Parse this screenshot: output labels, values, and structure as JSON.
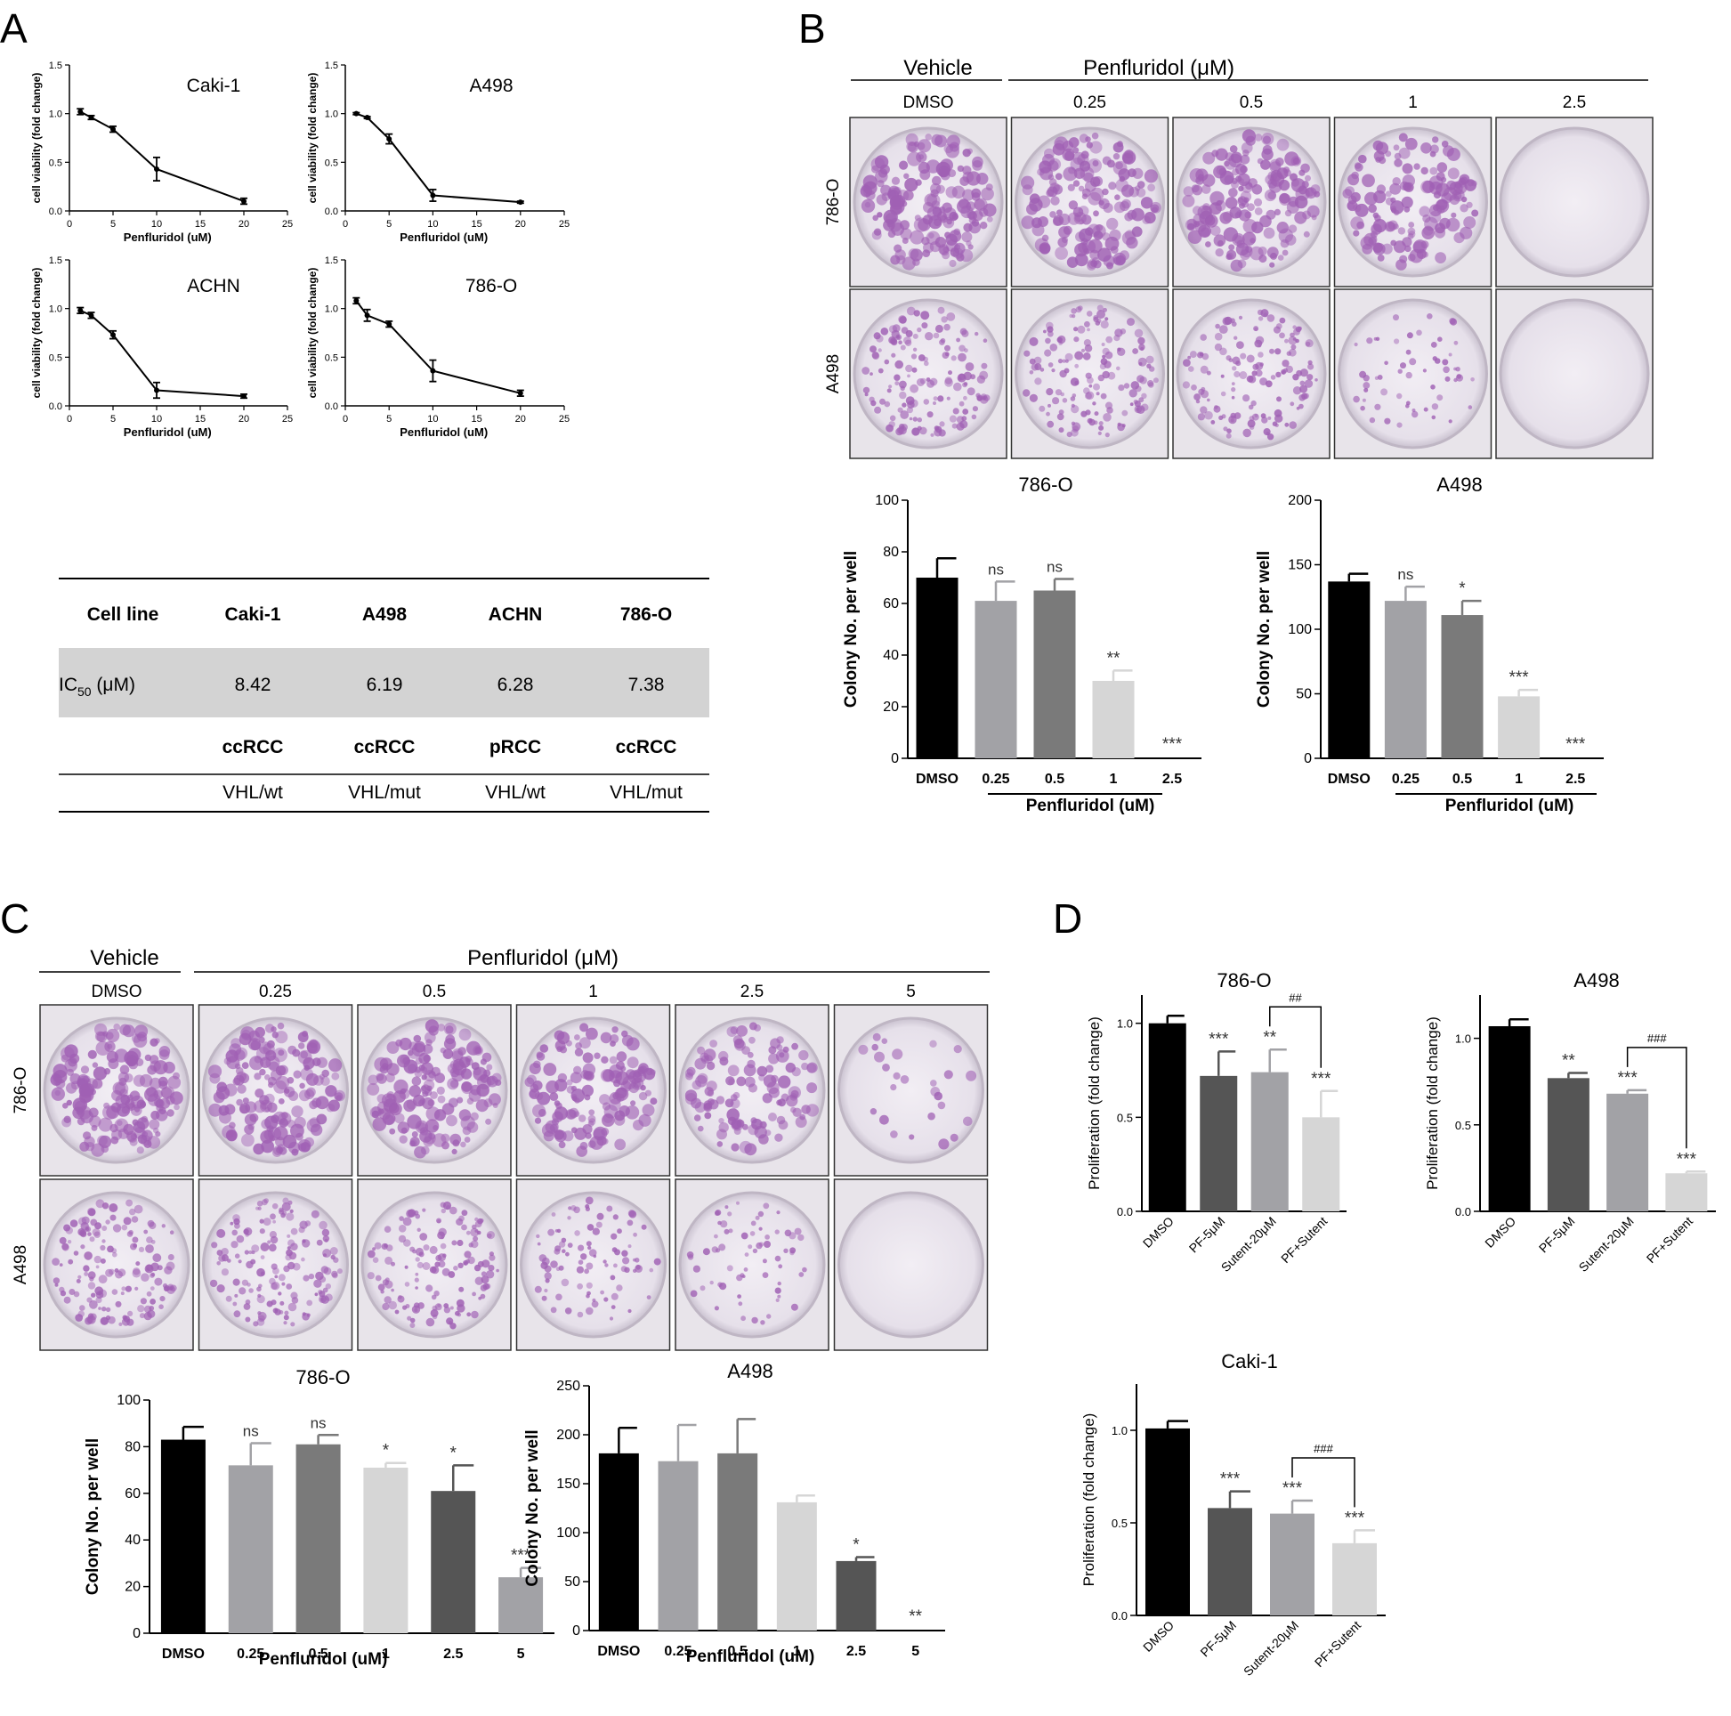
{
  "panel_labels": [
    "A",
    "B",
    "C",
    "D"
  ],
  "colors": {
    "black": "#000000",
    "dmso_bar": "#000000",
    "gray_dark": "#555555",
    "gray_mid": "#7a7a7a",
    "gray_light": "#a2a2a6",
    "gray_lightest": "#d6d6d6",
    "table_shade": "#d3d3d3",
    "well_bg": "#eeeaf0",
    "colony": "#a060b4"
  },
  "panel_a": {
    "ylabel": "cell viability (fold change)",
    "xlabel": "Penfluridol (uM)",
    "table": {
      "header": [
        "Cell line",
        "Caki-1",
        "A498",
        "ACHN",
        "786-O"
      ],
      "ic50_label": "IC",
      "ic50_sub": "50",
      "ic50_unit": " (μM)",
      "ic50_values": [
        "8.42",
        "6.19",
        "6.28",
        "7.38"
      ],
      "types": [
        "ccRCC",
        "ccRCC",
        "pRCC",
        "ccRCC"
      ],
      "vhl": [
        "VHL/wt",
        "VHL/mut",
        "VHL/wt",
        "VHL/mut"
      ]
    }
  },
  "panel_b": {
    "vehicle": "Vehicle",
    "treatment": "Penfluridol (μM)",
    "doses": [
      "DMSO",
      "0.25",
      "0.5",
      "1",
      "2.5"
    ],
    "rows": [
      "786-O",
      "A498"
    ],
    "density": [
      [
        1.0,
        0.95,
        1.0,
        0.85,
        0.0
      ],
      [
        0.9,
        0.9,
        0.85,
        0.35,
        0.0
      ]
    ]
  },
  "panel_c": {
    "vehicle": "Vehicle",
    "treatment": "Penfluridol (μM)",
    "doses": [
      "DMSO",
      "0.25",
      "0.5",
      "1",
      "2.5",
      "5"
    ],
    "rows": [
      "786-O",
      "A498"
    ],
    "density": [
      [
        1.0,
        0.95,
        1.0,
        0.85,
        0.7,
        0.15
      ],
      [
        0.9,
        0.9,
        0.85,
        0.55,
        0.4,
        0.0
      ]
    ]
  },
  "chart_data": [
    {
      "id": "A-Caki-1",
      "type": "line",
      "title": "Caki-1",
      "xlabel": "Penfluridol (uM)",
      "ylabel": "cell viability (fold change)",
      "xlim": [
        0,
        25
      ],
      "ylim": [
        0,
        1.5
      ],
      "xticks": [
        0,
        5,
        10,
        15,
        20,
        25
      ],
      "yticks": [
        0.0,
        0.5,
        1.0,
        1.5
      ],
      "x": [
        1.25,
        2.5,
        5,
        10,
        20
      ],
      "y": [
        1.02,
        0.96,
        0.84,
        0.43,
        0.1
      ],
      "err": [
        0.03,
        0.02,
        0.03,
        0.12,
        0.03
      ]
    },
    {
      "id": "A-A498",
      "type": "line",
      "title": "A498",
      "xlabel": "Penfluridol (uM)",
      "ylabel": "cell viability (fold change)",
      "xlim": [
        0,
        25
      ],
      "ylim": [
        0,
        1.5
      ],
      "xticks": [
        0,
        5,
        10,
        15,
        20,
        25
      ],
      "yticks": [
        0.0,
        0.5,
        1.0,
        1.5
      ],
      "x": [
        1.25,
        2.5,
        5,
        10,
        20
      ],
      "y": [
        1.0,
        0.96,
        0.74,
        0.16,
        0.09
      ],
      "err": [
        0.01,
        0.01,
        0.05,
        0.06,
        0.01
      ]
    },
    {
      "id": "A-ACHN",
      "type": "line",
      "title": "ACHN",
      "xlabel": "Penfluridol (uM)",
      "ylabel": "cell viability (fold change)",
      "xlim": [
        0,
        25
      ],
      "ylim": [
        0,
        1.5
      ],
      "xticks": [
        0,
        5,
        10,
        15,
        20,
        25
      ],
      "yticks": [
        0.0,
        0.5,
        1.0,
        1.5
      ],
      "x": [
        1.25,
        2.5,
        5,
        10,
        20
      ],
      "y": [
        0.98,
        0.93,
        0.73,
        0.16,
        0.1
      ],
      "err": [
        0.03,
        0.03,
        0.04,
        0.08,
        0.02
      ]
    },
    {
      "id": "A-786-O",
      "type": "line",
      "title": "786-O",
      "xlabel": "Penfluridol (uM)",
      "ylabel": "cell viability (fold change)",
      "xlim": [
        0,
        25
      ],
      "ylim": [
        0,
        1.5
      ],
      "xticks": [
        0,
        5,
        10,
        15,
        20,
        25
      ],
      "yticks": [
        0.0,
        0.5,
        1.0,
        1.5
      ],
      "x": [
        1.25,
        2.5,
        5,
        10,
        20
      ],
      "y": [
        1.08,
        0.93,
        0.84,
        0.36,
        0.13
      ],
      "err": [
        0.03,
        0.06,
        0.03,
        0.11,
        0.03
      ]
    },
    {
      "id": "B-786-O",
      "type": "bar",
      "title": "786-O",
      "ylabel": "Colony No. per well",
      "xlabel": "Penfluridol (uM)",
      "categories": [
        "DMSO",
        "0.25",
        "0.5",
        "1",
        "2.5"
      ],
      "values": [
        70,
        61,
        65,
        30,
        0
      ],
      "err": [
        7.5,
        7.5,
        4.5,
        4,
        0
      ],
      "sig": [
        "",
        "ns",
        "ns",
        "**",
        "***"
      ],
      "bar_colors": [
        "#000000",
        "#a2a2a6",
        "#7a7a7a",
        "#d6d6d6",
        "#555555"
      ],
      "ylim": [
        0,
        100
      ],
      "yticks": [
        0,
        20,
        40,
        60,
        80,
        100
      ]
    },
    {
      "id": "B-A498",
      "type": "bar",
      "title": "A498",
      "ylabel": "Colony No. per well",
      "xlabel": "Penfluridol (uM)",
      "categories": [
        "DMSO",
        "0.25",
        "0.5",
        "1",
        "2.5"
      ],
      "values": [
        137,
        122,
        111,
        48,
        0
      ],
      "err": [
        6,
        11,
        11,
        5,
        0
      ],
      "sig": [
        "",
        "ns",
        "*",
        "***",
        "***"
      ],
      "bar_colors": [
        "#000000",
        "#a2a2a6",
        "#7a7a7a",
        "#d6d6d6",
        "#555555"
      ],
      "ylim": [
        0,
        200
      ],
      "yticks": [
        0,
        50,
        100,
        150,
        200
      ]
    },
    {
      "id": "C-786-O",
      "type": "bar",
      "title": "786-O",
      "ylabel": "Colony No. per well",
      "xlabel": "Penfluridol (uM)",
      "categories": [
        "DMSO",
        "0.25",
        "0.5",
        "1",
        "2.5",
        "5"
      ],
      "values": [
        83,
        72,
        81,
        71,
        61,
        24
      ],
      "err": [
        5.5,
        9.5,
        4,
        2,
        11,
        4
      ],
      "sig": [
        "",
        "ns",
        "ns",
        "*",
        "*",
        "***"
      ],
      "bar_colors": [
        "#000000",
        "#a2a2a6",
        "#7a7a7a",
        "#d6d6d6",
        "#555555",
        "#a2a2a6"
      ],
      "ylim": [
        0,
        100
      ],
      "yticks": [
        0,
        20,
        40,
        60,
        80,
        100
      ]
    },
    {
      "id": "C-A498",
      "type": "bar",
      "title": "A498",
      "ylabel": "Colony No. per well",
      "xlabel": "Penfluridol (uM)",
      "categories": [
        "DMSO",
        "0.25",
        "0.5",
        "1",
        "2.5",
        "5"
      ],
      "values": [
        181,
        173,
        181,
        131,
        71,
        0
      ],
      "err": [
        26,
        37,
        35,
        7,
        4,
        0
      ],
      "sig": [
        "",
        "",
        "",
        "",
        "*",
        "**"
      ],
      "bar_colors": [
        "#000000",
        "#a2a2a6",
        "#7a7a7a",
        "#d6d6d6",
        "#555555",
        "#a2a2a6"
      ],
      "ylim": [
        0,
        250
      ],
      "yticks": [
        0,
        50,
        100,
        150,
        200,
        250
      ]
    },
    {
      "id": "D-786-O",
      "type": "bar",
      "title": "786-O",
      "ylabel": "Proliferation (fold change)",
      "categories": [
        "DMSO",
        "PF-5μM",
        "Sutent-20μM",
        "PF+Sutent"
      ],
      "values": [
        1.0,
        0.72,
        0.74,
        0.5
      ],
      "err": [
        0.04,
        0.13,
        0.12,
        0.14
      ],
      "sig": [
        "",
        "***",
        "**",
        "***"
      ],
      "bracket": "##",
      "bar_colors": [
        "#000000",
        "#555555",
        "#a2a2a6",
        "#d6d6d6"
      ],
      "ylim": [
        0,
        1.15
      ],
      "yticks": [
        0.0,
        0.5,
        1.0
      ]
    },
    {
      "id": "D-A498",
      "type": "bar",
      "title": "A498",
      "ylabel": "Proliferation (fold change)",
      "categories": [
        "DMSO",
        "PF-5μM",
        "Sutent-20μM",
        "PF+Sutent"
      ],
      "values": [
        1.07,
        0.77,
        0.68,
        0.22
      ],
      "err": [
        0.04,
        0.03,
        0.02,
        0.01
      ],
      "sig": [
        "",
        "**",
        "***",
        "***"
      ],
      "bracket": "###",
      "bar_colors": [
        "#000000",
        "#555555",
        "#a2a2a6",
        "#d6d6d6"
      ],
      "ylim": [
        0,
        1.25
      ],
      "yticks": [
        0.0,
        0.5,
        1.0
      ]
    },
    {
      "id": "D-Caki-1",
      "type": "bar",
      "title": "Caki-1",
      "ylabel": "Proliferation (fold change)",
      "categories": [
        "DMSO",
        "PF-5μM",
        "Sutent-20μM",
        "PF+Sutent"
      ],
      "values": [
        1.01,
        0.58,
        0.55,
        0.39
      ],
      "err": [
        0.04,
        0.09,
        0.07,
        0.07
      ],
      "sig": [
        "",
        "***",
        "***",
        "***"
      ],
      "bracket": "###",
      "bar_colors": [
        "#000000",
        "#555555",
        "#a2a2a6",
        "#d6d6d6"
      ],
      "ylim": [
        0,
        1.25
      ],
      "yticks": [
        0.0,
        0.5,
        1.0
      ]
    }
  ]
}
